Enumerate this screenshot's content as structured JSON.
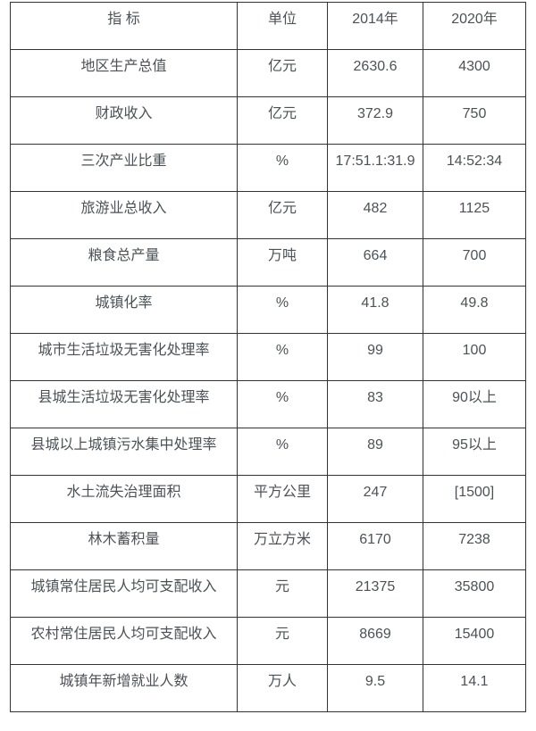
{
  "table": {
    "headers": [
      {
        "label": "指 标"
      },
      {
        "label": "单位"
      },
      {
        "label": "2014年"
      },
      {
        "label": "2020年"
      }
    ],
    "rows": [
      {
        "indicator": "地区生产总值",
        "unit": "亿元",
        "y2014": "2630.6",
        "y2020": "4300"
      },
      {
        "indicator": "财政收入",
        "unit": "亿元",
        "y2014": "372.9",
        "y2020": "750"
      },
      {
        "indicator": "三次产业比重",
        "unit": "%",
        "y2014": "17:51.1:31.9",
        "y2020": "14:52:34"
      },
      {
        "indicator": "旅游业总收入",
        "unit": "亿元",
        "y2014": "482",
        "y2020": "1125"
      },
      {
        "indicator": "粮食总产量",
        "unit": "万吨",
        "y2014": "664",
        "y2020": "700"
      },
      {
        "indicator": "城镇化率",
        "unit": "%",
        "y2014": "41.8",
        "y2020": "49.8"
      },
      {
        "indicator": "城市生活垃圾无害化处理率",
        "unit": "%",
        "y2014": "99",
        "y2020": "100"
      },
      {
        "indicator": "县城生活垃圾无害化处理率",
        "unit": "%",
        "y2014": "83",
        "y2020": "90以上"
      },
      {
        "indicator": "县城以上城镇污水集中处理率",
        "unit": "%",
        "y2014": "89",
        "y2020": "95以上"
      },
      {
        "indicator": "水土流失治理面积",
        "unit": "平方公里",
        "y2014": "247",
        "y2020": "[1500]"
      },
      {
        "indicator": "林木蓄积量",
        "unit": "万立方米",
        "y2014": "6170",
        "y2020": "7238"
      },
      {
        "indicator": "城镇常住居民人均可支配收入",
        "unit": "元",
        "y2014": "21375",
        "y2020": "35800"
      },
      {
        "indicator": "农村常住居民人均可支配收入",
        "unit": "元",
        "y2014": "8669",
        "y2020": "15400"
      },
      {
        "indicator": "城镇年新增就业人数",
        "unit": "万人",
        "y2014": "9.5",
        "y2020": "14.1"
      }
    ]
  },
  "colors": {
    "border": "#333333",
    "text": "#4d5156",
    "background": "#ffffff"
  }
}
